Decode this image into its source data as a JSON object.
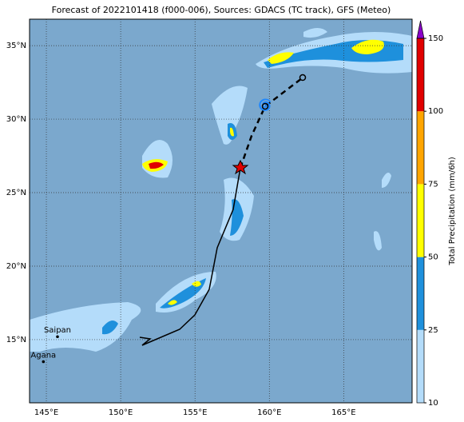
{
  "chart_data": {
    "type": "map",
    "title": "Forecast of 2022101418 (f000-006), Sources: GDACS (TC track), GFS (Meteo)",
    "xlim": [
      143.87,
      169.6
    ],
    "ylim": [
      10.7,
      36.8
    ],
    "xticks": [
      {
        "value": 145,
        "label": "145°E"
      },
      {
        "value": 150,
        "label": "150°E"
      },
      {
        "value": 155,
        "label": "155°E"
      },
      {
        "value": 160,
        "label": "160°E"
      },
      {
        "value": 165,
        "label": "165°E"
      }
    ],
    "yticks": [
      {
        "value": 15,
        "label": "15°N"
      },
      {
        "value": 20,
        "label": "20°N"
      },
      {
        "value": 25,
        "label": "25°N"
      },
      {
        "value": 30,
        "label": "30°N"
      },
      {
        "value": 35,
        "label": "35°N"
      }
    ],
    "grid": true,
    "cities": [
      {
        "name": "Saipan",
        "lon": 145.75,
        "lat": 15.2
      },
      {
        "name": "Agana",
        "lon": 144.8,
        "lat": 13.5
      }
    ],
    "colorbar": {
      "label": "Total Precipitation (mm/6h)",
      "ticks": [
        10,
        25,
        50,
        75,
        100,
        150
      ],
      "colors": [
        "#b4dcfa",
        "#1e90dc",
        "#ffff00",
        "#ffa500",
        "#e00000"
      ],
      "extend_color": "#8a00c8"
    }
  }
}
